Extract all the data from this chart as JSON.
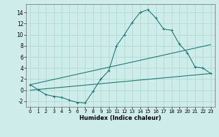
{
  "xlabel": "Humidex (Indice chaleur)",
  "bg_color": "#ceecea",
  "grid_color": "#b0d8d5",
  "line_color": "#1a7870",
  "xlim": [
    -0.5,
    23.5
  ],
  "ylim": [
    -3.0,
    15.5
  ],
  "xticks": [
    0,
    1,
    2,
    3,
    4,
    5,
    6,
    7,
    8,
    9,
    10,
    11,
    12,
    13,
    14,
    15,
    16,
    17,
    18,
    19,
    20,
    21,
    22,
    23
  ],
  "yticks": [
    -2,
    0,
    2,
    4,
    6,
    8,
    10,
    12,
    14
  ],
  "curve1_x": [
    0,
    1,
    2,
    3,
    4,
    5,
    6,
    7,
    8,
    9,
    10,
    11,
    12,
    13,
    14,
    15,
    16,
    17,
    18,
    19,
    20,
    21,
    22,
    23
  ],
  "curve1_y": [
    1.0,
    0.1,
    -0.8,
    -1.1,
    -1.3,
    -1.8,
    -2.2,
    -2.3,
    -0.2,
    2.0,
    3.5,
    8.0,
    10.0,
    12.2,
    14.0,
    14.5,
    13.0,
    11.0,
    10.8,
    8.3,
    6.8,
    4.2,
    4.0,
    3.0
  ],
  "curve2_x": [
    0,
    23
  ],
  "curve2_y": [
    1.0,
    8.2
  ],
  "curve3_x": [
    0,
    23
  ],
  "curve3_y": [
    0.0,
    3.0
  ]
}
